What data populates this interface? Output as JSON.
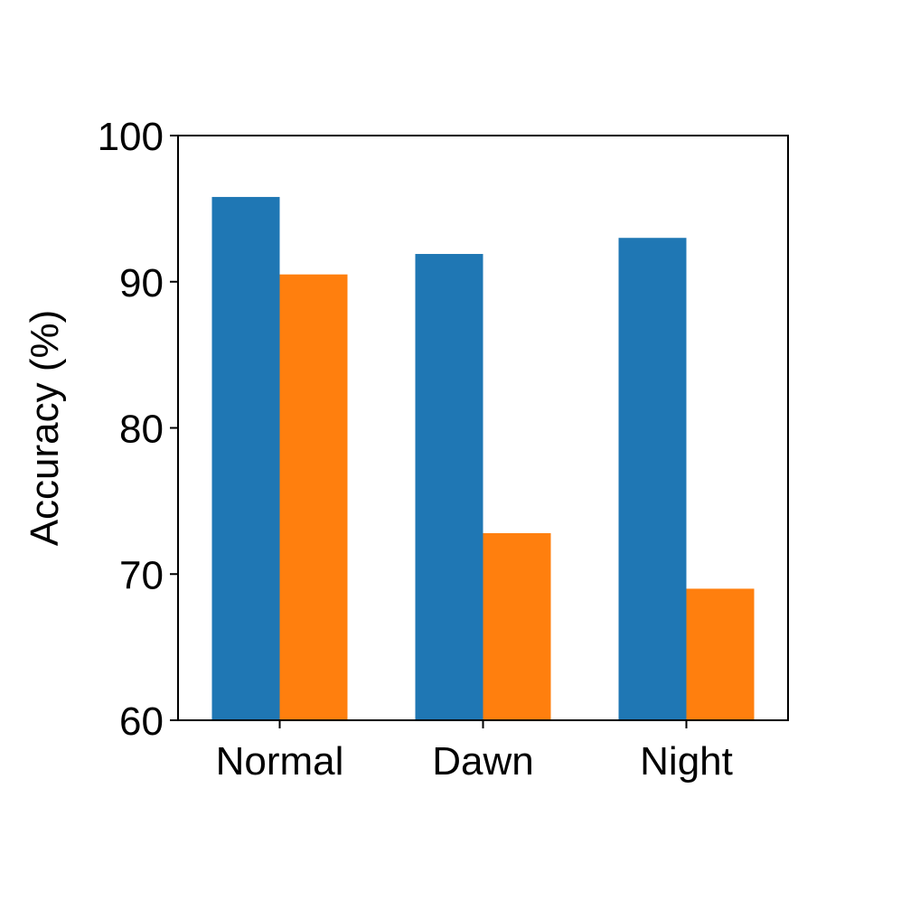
{
  "chart_data": {
    "type": "bar",
    "title": "",
    "xlabel": "",
    "ylabel": "Accuracy (%)",
    "categories": [
      "Normal",
      "Dawn",
      "Night"
    ],
    "series": [
      {
        "values": [
          95.8,
          91.9,
          93.0
        ],
        "color": "#1f77b4"
      },
      {
        "values": [
          90.5,
          72.8,
          69.0
        ],
        "color": "#ff7f0e"
      }
    ],
    "ylim": [
      60,
      100
    ],
    "yticks": [
      "60",
      "70",
      "80",
      "90",
      "100"
    ],
    "grid": false,
    "legend": "none"
  }
}
